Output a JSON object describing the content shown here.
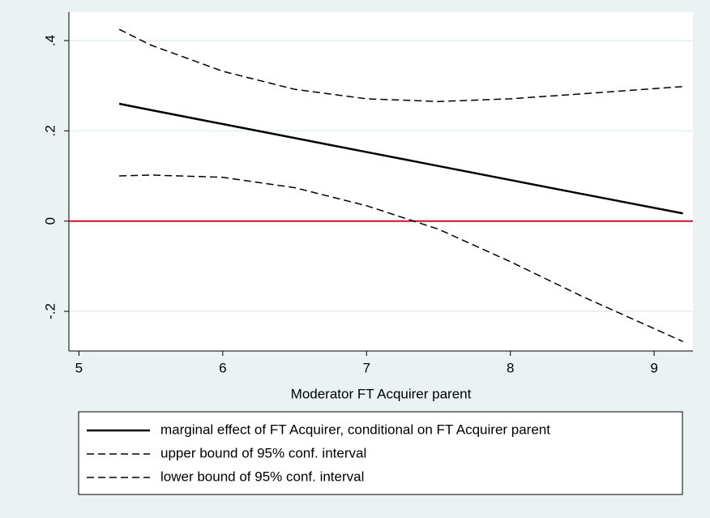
{
  "chart_data": {
    "type": "line",
    "xlabel": "Moderator FT Acquirer parent",
    "x": [
      5.28,
      5.5,
      6,
      6.5,
      7,
      7.5,
      8,
      8.5,
      9.2
    ],
    "series": [
      {
        "name": "marginal effect of FT Acquirer, conditional on FT Acquirer parent",
        "color": "#000000",
        "dashed": false,
        "values": [
          0.26,
          0.246,
          0.215,
          0.184,
          0.153,
          0.122,
          0.091,
          0.06,
          0.017
        ]
      },
      {
        "name": "upper bound of 95% conf. interval",
        "color": "#000000",
        "dashed": true,
        "values": [
          0.425,
          0.39,
          0.332,
          0.292,
          0.271,
          0.265,
          0.271,
          0.282,
          0.298
        ]
      },
      {
        "name": "lower bound of 95% conf. interval",
        "color": "#000000",
        "dashed": true,
        "values": [
          0.1,
          0.102,
          0.097,
          0.074,
          0.034,
          -0.018,
          -0.09,
          -0.167,
          -0.267
        ]
      }
    ],
    "xlim": [
      4.93,
      9.27
    ],
    "xticks": [
      5,
      6,
      7,
      8,
      9
    ],
    "ylim": [
      -0.288,
      0.463
    ],
    "yticks": [
      {
        "value": -0.2,
        "label": "-.2"
      },
      0,
      {
        "value": 0.2,
        "label": ".2"
      },
      {
        "value": 0.4,
        "label": ".4"
      }
    ],
    "grid": true,
    "grid_color": "#e3eeee",
    "reference_line": {
      "value": 0,
      "color": "#c8102e"
    }
  }
}
